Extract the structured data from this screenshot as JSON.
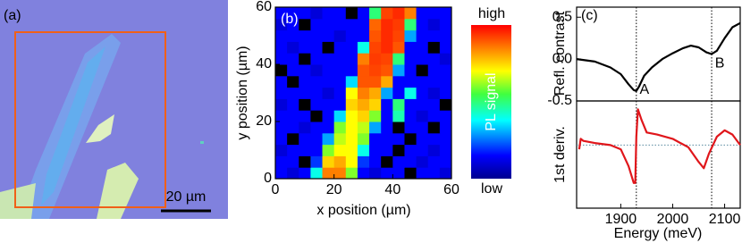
{
  "chart_data": [
    {
      "type": "image",
      "label": "(a)",
      "scale_bar": "20 µm"
    },
    {
      "type": "heatmap",
      "label": "(b)",
      "xlabel": "x position (µm)",
      "ylabel": "y position (µm)",
      "xlim": [
        0,
        60
      ],
      "ylim": [
        0,
        60
      ],
      "xticks": [
        0,
        20,
        40,
        60
      ],
      "yticks": [
        0,
        20,
        40,
        60
      ],
      "zlim": [
        0,
        1
      ],
      "colorbar_high": "high",
      "colorbar_low": "low",
      "colorbar_label": "PL signal",
      "z": [
        [
          0.15,
          0.1,
          0.15,
          0.4,
          0.85,
          0.85,
          0.6,
          0.15,
          0.1,
          0.15,
          0.15,
          0.05,
          0.15,
          0.15,
          0.1
        ],
        [
          0.15,
          0.15,
          0.05,
          0.2,
          0.75,
          0.8,
          0.7,
          0.2,
          0.15,
          0.05,
          0.15,
          0.15,
          0.1,
          0.15,
          0.15
        ],
        [
          0.1,
          0.15,
          0.15,
          0.15,
          0.6,
          0.7,
          0.7,
          0.4,
          0.15,
          0.15,
          0.05,
          0.15,
          0.15,
          0.1,
          0.15
        ],
        [
          0.15,
          0.05,
          0.15,
          0.15,
          0.3,
          0.65,
          0.7,
          0.6,
          0.15,
          0.15,
          0.15,
          0.05,
          0.15,
          0.15,
          0.15
        ],
        [
          0.15,
          0.15,
          0.1,
          0.15,
          0.15,
          0.6,
          0.7,
          0.65,
          0.3,
          0.15,
          0.05,
          0.15,
          0.15,
          0.05,
          0.15
        ],
        [
          0.15,
          0.15,
          0.15,
          0.05,
          0.15,
          0.35,
          0.7,
          0.75,
          0.6,
          0.15,
          0.45,
          0.15,
          0.1,
          0.15,
          0.15
        ],
        [
          0.1,
          0.15,
          0.05,
          0.15,
          0.15,
          0.15,
          0.75,
          0.8,
          0.75,
          0.15,
          0.5,
          0.15,
          0.15,
          0.15,
          0.05
        ],
        [
          0.15,
          0.15,
          0.15,
          0.15,
          0.1,
          0.15,
          0.7,
          0.85,
          0.8,
          0.3,
          0.15,
          0.4,
          0.15,
          0.1,
          0.15
        ],
        [
          0.15,
          0.05,
          0.15,
          0.15,
          0.15,
          0.15,
          0.35,
          0.9,
          0.9,
          0.8,
          0.15,
          0.15,
          0.15,
          0.15,
          0.15
        ],
        [
          0.05,
          0.15,
          0.15,
          0.1,
          0.15,
          0.15,
          0.15,
          0.9,
          0.92,
          0.9,
          0.3,
          0.15,
          0.05,
          0.15,
          0.15
        ],
        [
          0.15,
          0.15,
          0.05,
          0.15,
          0.15,
          0.15,
          0.15,
          0.85,
          0.93,
          0.92,
          0.5,
          0.15,
          0.15,
          0.15,
          0.1
        ],
        [
          0.15,
          0.1,
          0.15,
          0.15,
          0.05,
          0.15,
          0.15,
          0.4,
          0.92,
          0.95,
          0.9,
          0.15,
          0.15,
          0.05,
          0.15
        ],
        [
          0.15,
          0.15,
          0.15,
          0.15,
          0.15,
          0.1,
          0.15,
          0.15,
          0.9,
          0.95,
          0.92,
          0.3,
          0.15,
          0.15,
          0.15
        ],
        [
          0.1,
          0.15,
          0.05,
          0.15,
          0.15,
          0.15,
          0.15,
          0.15,
          0.88,
          0.95,
          0.93,
          0.5,
          0.15,
          0.1,
          0.15
        ],
        [
          0.15,
          0.15,
          0.15,
          0.1,
          0.15,
          0.15,
          0.05,
          0.15,
          0.5,
          0.92,
          0.95,
          0.85,
          0.15,
          0.15,
          0.15
        ]
      ]
    },
    {
      "type": "line",
      "label": "(c)",
      "ylabel": "Refl. contrast",
      "color": "#000000",
      "xlim": [
        1815,
        2130
      ],
      "ylim": [
        -0.5,
        0.62
      ],
      "yticks": [
        -0.5,
        {
          "value": 0,
          "label": "0.0"
        },
        0.5
      ],
      "x": [
        1815,
        1850,
        1880,
        1900,
        1915,
        1925,
        1930,
        1935,
        1945,
        1960,
        1980,
        2000,
        2020,
        2035,
        2050,
        2065,
        2075,
        2085,
        2100,
        2115,
        2130
      ],
      "values": [
        0,
        -0.03,
        -0.1,
        -0.18,
        -0.3,
        -0.37,
        -0.38,
        -0.33,
        -0.2,
        -0.1,
        0,
        0.07,
        0.13,
        0.16,
        0.14,
        0.08,
        0.06,
        0.1,
        0.25,
        0.38,
        0.43
      ],
      "vlines": [
        1930,
        2075
      ],
      "annotations": [
        "A",
        "B"
      ]
    },
    {
      "type": "line",
      "ylabel": "1st deriv.",
      "xlabel": "Energy (meV)",
      "color": "#e0161b",
      "xlim": [
        1815,
        2130
      ],
      "ylim": [
        -1.5,
        1.05
      ],
      "xticks": [
        1900,
        2000,
        2100
      ],
      "x": [
        1820,
        1823,
        1828,
        1850,
        1880,
        1900,
        1915,
        1925,
        1928,
        1930,
        1933,
        1940,
        1950,
        1970,
        2000,
        2030,
        2050,
        2060,
        2070,
        2085,
        2100,
        2115,
        2130
      ],
      "values": [
        -0.1,
        0.15,
        0.1,
        0.05,
        0,
        -0.1,
        -0.5,
        -0.9,
        -0.9,
        0.2,
        0.85,
        0.6,
        0.3,
        0.25,
        0.15,
        -0.05,
        -0.4,
        -0.55,
        -0.2,
        0.2,
        0.35,
        0.25,
        0
      ],
      "vlines": [
        1930,
        2075
      ],
      "hline": 0
    }
  ]
}
